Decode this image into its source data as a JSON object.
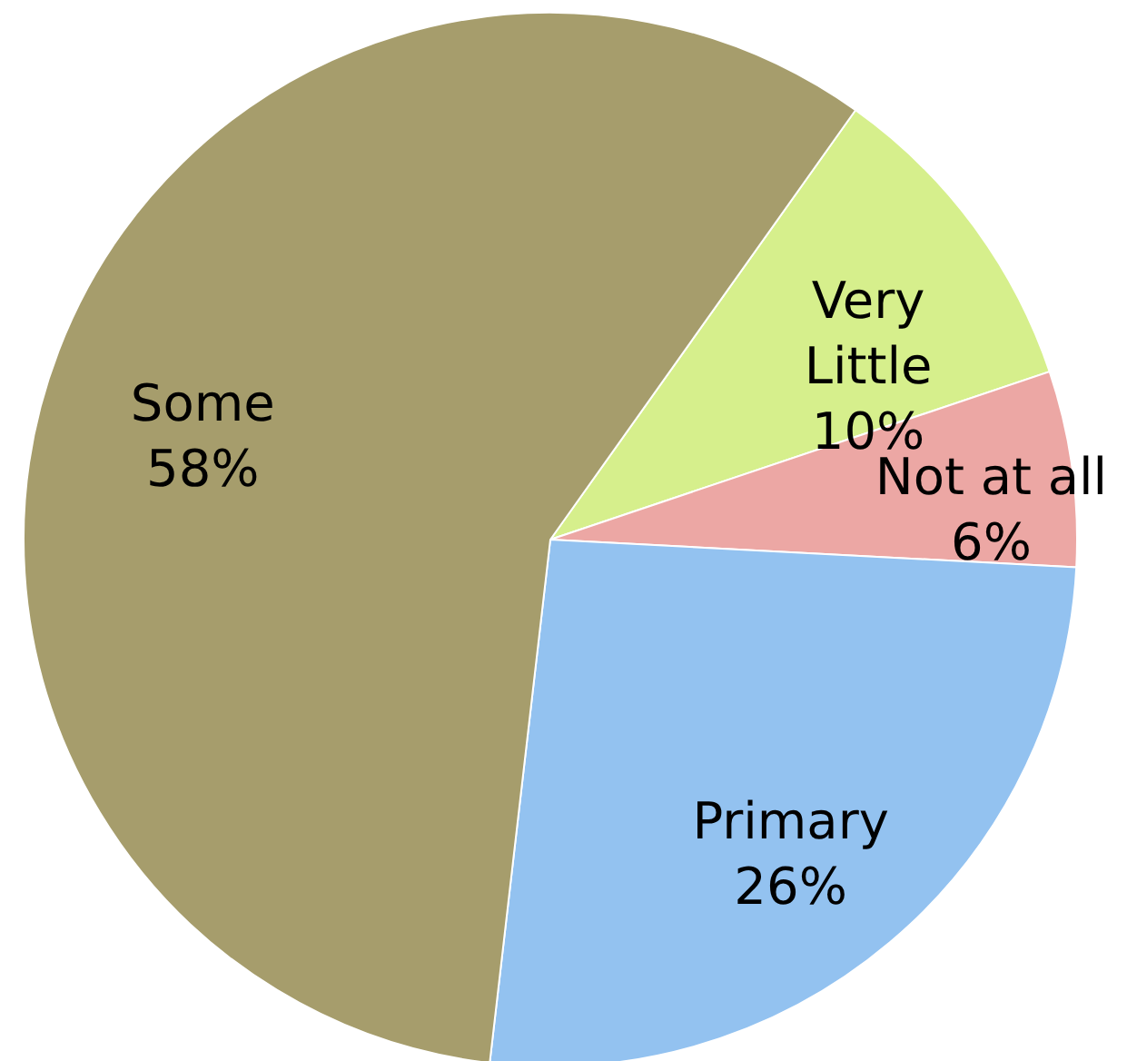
{
  "chart_data": {
    "type": "pie",
    "categories": [
      "Very Little",
      "Not at all",
      "Primary",
      "Some"
    ],
    "values": [
      10,
      6,
      26,
      58
    ],
    "colors": [
      "#d6ef8c",
      "#eca7a4",
      "#93c2f0",
      "#a69d6c"
    ],
    "value_labels": [
      "10%",
      "6%",
      "26%",
      "58%"
    ]
  }
}
